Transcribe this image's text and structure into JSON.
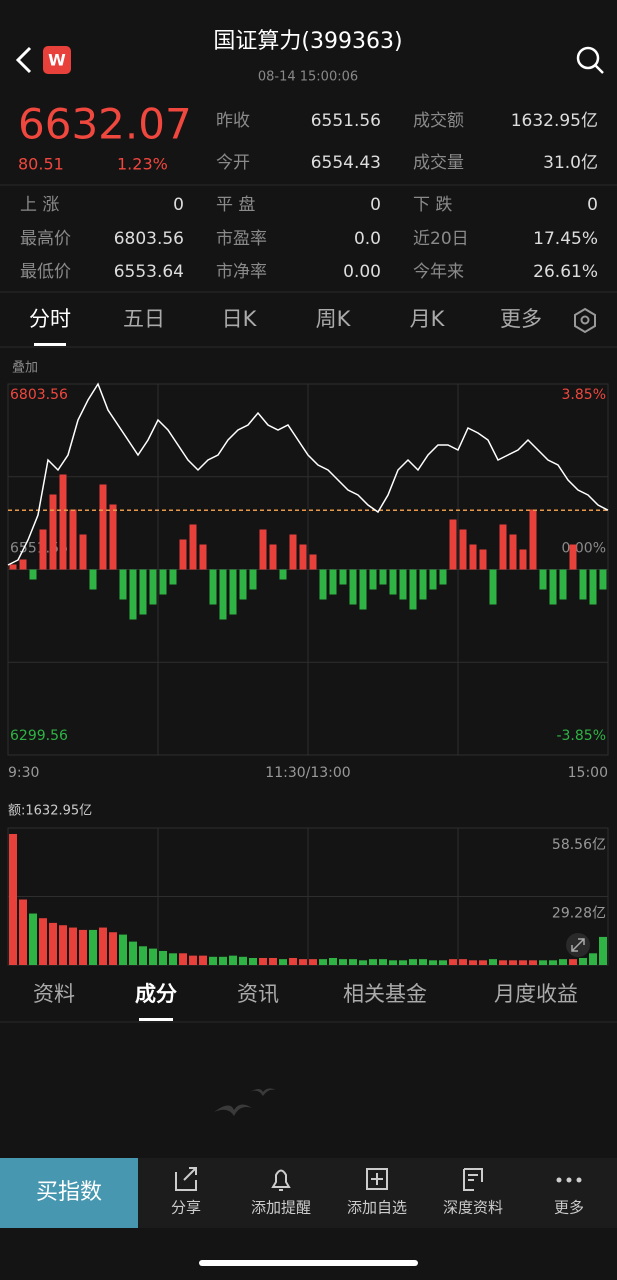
{
  "header": {
    "title": "国证算力(399363)",
    "timestamp": "08-14 15:00:06",
    "badge": "W"
  },
  "quote": {
    "price": "6632.07",
    "change": "80.51",
    "change_pct": "1.23%"
  },
  "stats": [
    [
      {
        "label": "昨收",
        "value": "6551.56"
      },
      {
        "label": "成交额",
        "value": "1632.95亿"
      }
    ],
    [
      {
        "label": "今开",
        "value": "6554.43"
      },
      {
        "label": "成交量",
        "value": "31.0亿"
      }
    ],
    [
      {
        "label": "上 涨",
        "value": "0"
      },
      {
        "label": "平 盘",
        "value": "0"
      },
      {
        "label": "下 跌",
        "value": "0"
      }
    ],
    [
      {
        "label": "最高价",
        "value": "6803.56"
      },
      {
        "label": "市盈率",
        "value": "0.0"
      },
      {
        "label": "近20日",
        "value": "17.45%"
      }
    ],
    [
      {
        "label": "最低价",
        "value": "6553.64"
      },
      {
        "label": "市净率",
        "value": "0.00"
      },
      {
        "label": "今年来",
        "value": "26.61%"
      }
    ]
  ],
  "chart_tabs": {
    "items": [
      "分时",
      "五日",
      "日K",
      "周K",
      "月K",
      "更多"
    ],
    "active": 0
  },
  "overlay_label": "叠加",
  "chart_data": [
    {
      "type": "line",
      "color": "#ffffff",
      "x": [
        0,
        4,
        8,
        12,
        16,
        20,
        24,
        28,
        32,
        36,
        40,
        44,
        48,
        52,
        56,
        60,
        64,
        68,
        72,
        76,
        80,
        84,
        88,
        92,
        96,
        100,
        104,
        108,
        112,
        116,
        120,
        124,
        128,
        132,
        136,
        140,
        144,
        148,
        152,
        156,
        160,
        164,
        168,
        172,
        176,
        180,
        184,
        188,
        192,
        196,
        200,
        204,
        208,
        212,
        216,
        220,
        224,
        228,
        232,
        236,
        240
      ],
      "values": [
        6557.7,
        6564.5,
        6591.6,
        6625.6,
        6700.3,
        6686.7,
        6707.1,
        6754.7,
        6781.8,
        6803.56,
        6768.2,
        6747.9,
        6727.5,
        6707.1,
        6727.5,
        6754.7,
        6741.1,
        6720.7,
        6700.3,
        6686.7,
        6700.3,
        6707.1,
        6727.5,
        6741.1,
        6747.9,
        6764.2,
        6747.9,
        6741.1,
        6747.9,
        6727.5,
        6707.1,
        6693.5,
        6686.7,
        6673.2,
        6659.6,
        6652.8,
        6639.2,
        6629.7,
        6652.8,
        6686.7,
        6700.3,
        6686.7,
        6707.1,
        6720.7,
        6720.7,
        6713.9,
        6743.8,
        6737.0,
        6727.5,
        6700.3,
        6707.1,
        6713.9,
        6727.5,
        6713.9,
        6700.3,
        6693.5,
        6673.2,
        6659.6,
        6652.8,
        6639.2,
        6632.07
      ],
      "xlim": [
        0,
        240
      ],
      "xticks": [
        {
          "value": 0,
          "label": "9:30"
        },
        {
          "value": 120,
          "label": "11:30/13:00"
        },
        {
          "value": 240,
          "label": "15:00"
        }
      ],
      "ylim": [
        6299.56,
        6803.56
      ],
      "yticks": [
        6803.56,
        6551.56,
        6299.56
      ],
      "y2lim": [
        -3.85,
        3.85
      ],
      "y2ticks": [
        {
          "value": 3.85,
          "label": "3.85%"
        },
        {
          "value": 0,
          "label": "0.00%"
        },
        {
          "value": -3.85,
          "label": "-3.85%"
        }
      ],
      "ref_line": 6632.07,
      "ref_color": "#e89a4a",
      "up_color": "#f0473e",
      "down_color": "#2fb344",
      "flat_color": "#8a8a8a"
    },
    {
      "type": "bar",
      "values": [
        5,
        10,
        -10,
        40,
        75,
        95,
        60,
        35,
        -20,
        85,
        65,
        -30,
        -50,
        -45,
        -35,
        -25,
        -15,
        30,
        45,
        25,
        -35,
        -50,
        -45,
        -30,
        -20,
        40,
        25,
        -10,
        35,
        25,
        15,
        -30,
        -25,
        -15,
        -35,
        -40,
        -20,
        -15,
        -25,
        -30,
        -40,
        -30,
        -20,
        -15,
        50,
        40,
        25,
        20,
        -35,
        45,
        35,
        20,
        60,
        -20,
        -35,
        -30,
        25,
        -30,
        -35,
        -20
      ],
      "ylim": [
        -100,
        100
      ],
      "up_color": "#e8413c",
      "down_color": "#2fb344"
    },
    {
      "type": "bar",
      "title": "额:1632.95亿",
      "values": [
        56,
        28,
        22,
        20,
        18,
        17,
        16,
        15,
        15,
        16,
        14,
        13,
        10,
        8,
        7,
        6,
        5,
        5,
        4,
        4,
        3.5,
        3.5,
        4,
        3.5,
        3,
        3,
        3,
        2.5,
        3,
        2.5,
        2.5,
        2.5,
        3,
        2.5,
        2.5,
        2,
        2.5,
        2.5,
        2,
        2,
        2.5,
        2.5,
        2,
        2,
        2.5,
        2.5,
        2,
        2,
        2.5,
        2,
        2,
        2,
        2,
        2,
        2,
        2.5,
        2.5,
        3,
        5,
        12
      ],
      "ylim": [
        0,
        58.56
      ],
      "yticks": [
        {
          "value": 58.56,
          "label": "58.56亿"
        },
        {
          "value": 29.28,
          "label": "29.28亿"
        }
      ],
      "up_color": "#e8413c",
      "down_color": "#2fb344"
    }
  ],
  "section_tabs": {
    "items": [
      "资料",
      "成分",
      "资讯",
      "相关基金",
      "月度收益"
    ],
    "active": 1
  },
  "actions": {
    "buy": "买指数",
    "items": [
      "分享",
      "添加提醒",
      "添加自选",
      "深度资料",
      "更多"
    ]
  }
}
